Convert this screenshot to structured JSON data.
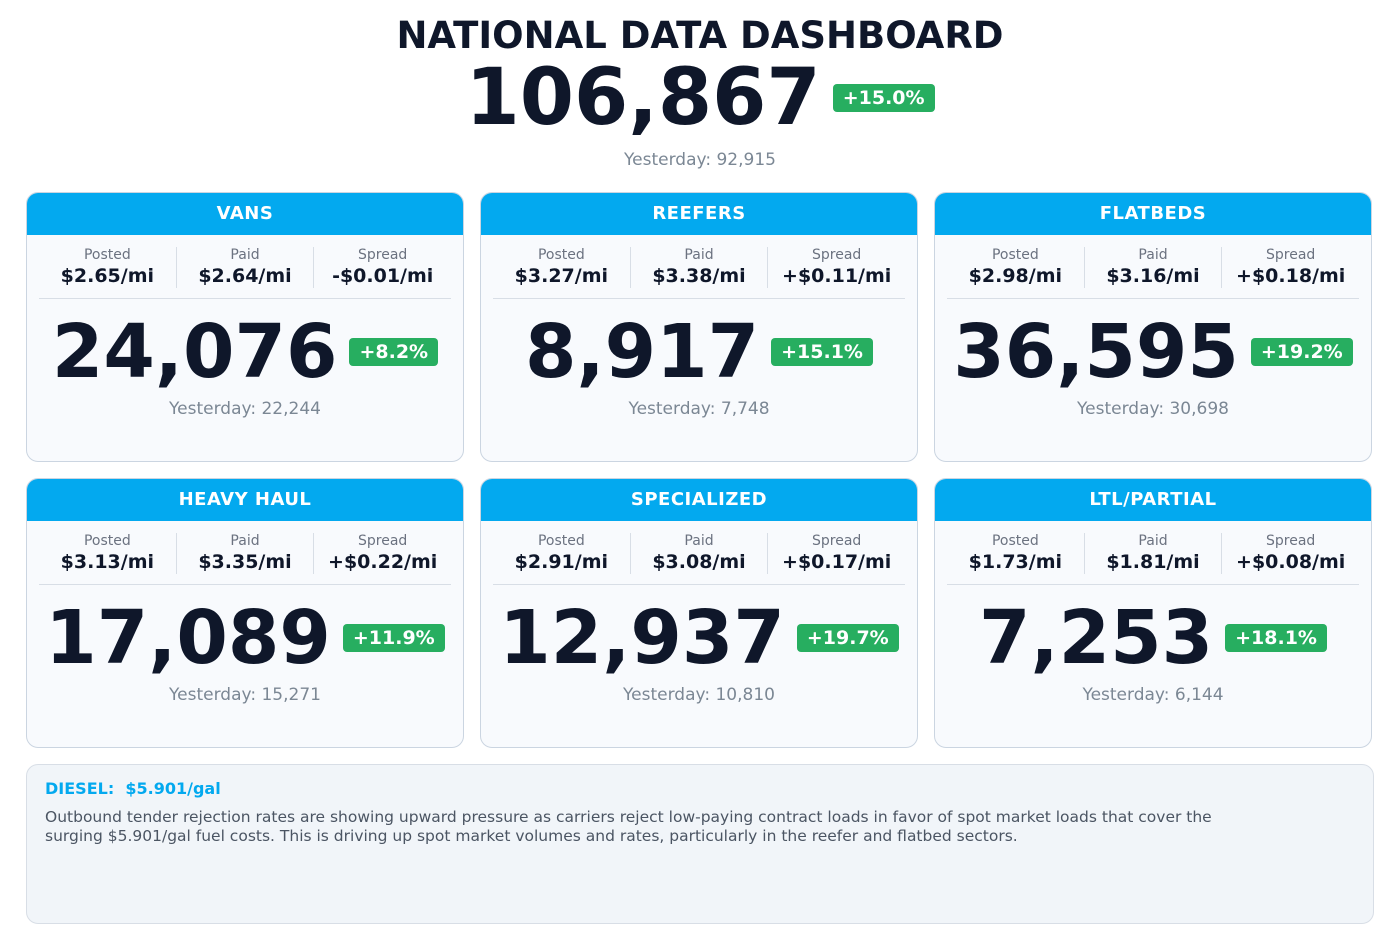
{
  "header": {
    "title": "NATIONAL DATA DASHBOARD",
    "total": "106,867",
    "change": "+15.0%",
    "yesterday": "Yesterday: 92,915"
  },
  "cards": [
    {
      "name": "VANS",
      "posted_label": "Posted",
      "posted": "$2.65/mi",
      "paid_label": "Paid",
      "paid": "$2.64/mi",
      "spread_label": "Spread",
      "spread": "-$0.01/mi",
      "count": "24,076",
      "change": "+8.2%",
      "yesterday": "Yesterday: 22,244"
    },
    {
      "name": "REEFERS",
      "posted_label": "Posted",
      "posted": "$3.27/mi",
      "paid_label": "Paid",
      "paid": "$3.38/mi",
      "spread_label": "Spread",
      "spread": "+$0.11/mi",
      "count": "8,917",
      "change": "+15.1%",
      "yesterday": "Yesterday: 7,748"
    },
    {
      "name": "FLATBEDS",
      "posted_label": "Posted",
      "posted": "$2.98/mi",
      "paid_label": "Paid",
      "paid": "$3.16/mi",
      "spread_label": "Spread",
      "spread": "+$0.18/mi",
      "count": "36,595",
      "change": "+19.2%",
      "yesterday": "Yesterday: 30,698"
    },
    {
      "name": "HEAVY HAUL",
      "posted_label": "Posted",
      "posted": "$3.13/mi",
      "paid_label": "Paid",
      "paid": "$3.35/mi",
      "spread_label": "Spread",
      "spread": "+$0.22/mi",
      "count": "17,089",
      "change": "+11.9%",
      "yesterday": "Yesterday: 15,271"
    },
    {
      "name": "SPECIALIZED",
      "posted_label": "Posted",
      "posted": "$2.91/mi",
      "paid_label": "Paid",
      "paid": "$3.08/mi",
      "spread_label": "Spread",
      "spread": "+$0.17/mi",
      "count": "12,937",
      "change": "+19.7%",
      "yesterday": "Yesterday: 10,810"
    },
    {
      "name": "LTL/PARTIAL",
      "posted_label": "Posted",
      "posted": "$1.73/mi",
      "paid_label": "Paid",
      "paid": "$1.81/mi",
      "spread_label": "Spread",
      "spread": "+$0.08/mi",
      "count": "7,253",
      "change": "+18.1%",
      "yesterday": "Yesterday: 6,144"
    }
  ],
  "diesel": {
    "label": "DIESEL:",
    "value": "$5.901/gal",
    "note": "Outbound tender rejection rates are showing upward pressure as carriers reject low-paying contract loads in favor of spot market loads that cover the surging $5.901/gal fuel costs. This is driving up spot market volumes and rates, particularly in the reefer and flatbed sectors."
  }
}
